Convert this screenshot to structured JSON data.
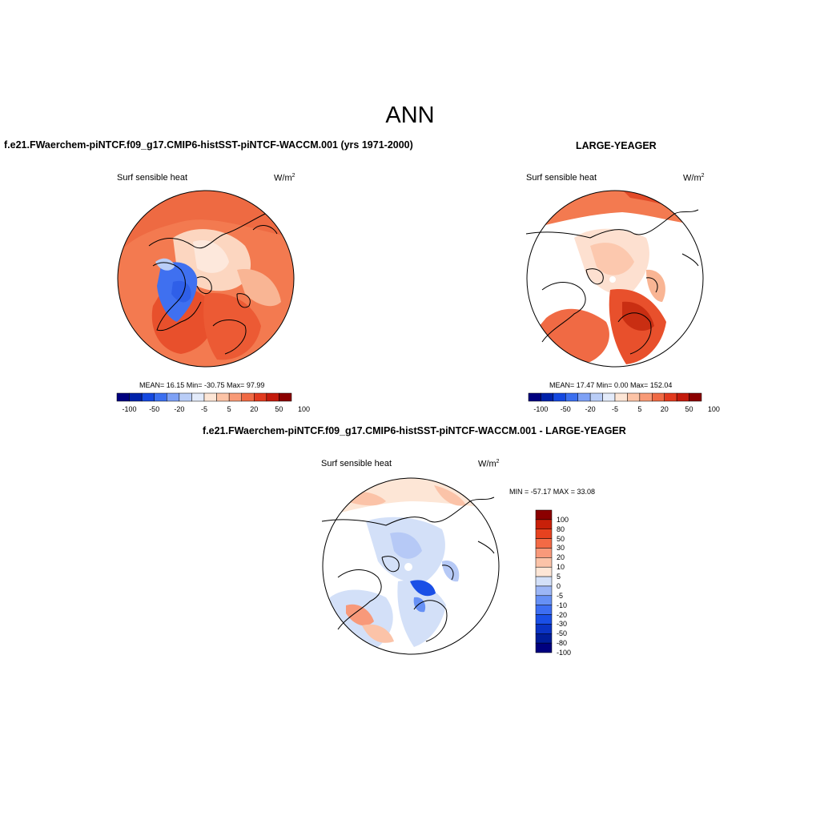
{
  "page": {
    "title": "ANN"
  },
  "panels": [
    {
      "case_title": "f.e21.FWaerchem-piNTCF.f09_g17.CMIP6-histSST-piNTCF-WACCM.001 (yrs 1971-2000)",
      "variable": "Surf sensible heat",
      "units": "W/m",
      "units_exp": "2",
      "stats": "MEAN=  16.15  Min= -30.75  Max=  97.99",
      "colorbar_ticks": [
        "-100",
        "-50",
        "-20",
        "-5",
        "5",
        "20",
        "50",
        "100"
      ]
    },
    {
      "case_title": "LARGE-YEAGER",
      "variable": "Surf sensible heat",
      "units": "W/m",
      "units_exp": "2",
      "stats": "MEAN=  17.47  Min=   0.00  Max= 152.04",
      "colorbar_ticks": [
        "-100",
        "-50",
        "-20",
        "-5",
        "5",
        "20",
        "50",
        "100"
      ]
    },
    {
      "case_title": "f.e21.FWaerchem-piNTCF.f09_g17.CMIP6-histSST-piNTCF-WACCM.001 - LARGE-YEAGER",
      "variable": "Surf sensible heat",
      "units": "W/m",
      "units_exp": "2",
      "stats": "MIN = -57.17 MAX =  33.08",
      "colorbar_ticks": [
        "100",
        "80",
        "50",
        "30",
        "20",
        "10",
        "5",
        "0",
        "-5",
        "-10",
        "-20",
        "-30",
        "-50",
        "-80",
        "-100"
      ]
    }
  ],
  "colors": {
    "abs_scale": [
      "#00007f",
      "#0022aa",
      "#1448e0",
      "#3b6ff0",
      "#7ea1f5",
      "#b9cdf7",
      "#e3ebfa",
      "#fde6d6",
      "#fcc3a6",
      "#f89a76",
      "#f06a44",
      "#e23a1e",
      "#c41a0c",
      "#8b0000"
    ],
    "diff_scale": [
      "#00007f",
      "#001d9a",
      "#0a33c4",
      "#1a4fe6",
      "#3d6ef2",
      "#6690f5",
      "#9cb6f6",
      "#d3e0f8",
      "#fde6d6",
      "#fbc3a8",
      "#f8997a",
      "#f36a45",
      "#e6421f",
      "#c82009",
      "#8b0000"
    ],
    "land_outline": "#000000"
  }
}
